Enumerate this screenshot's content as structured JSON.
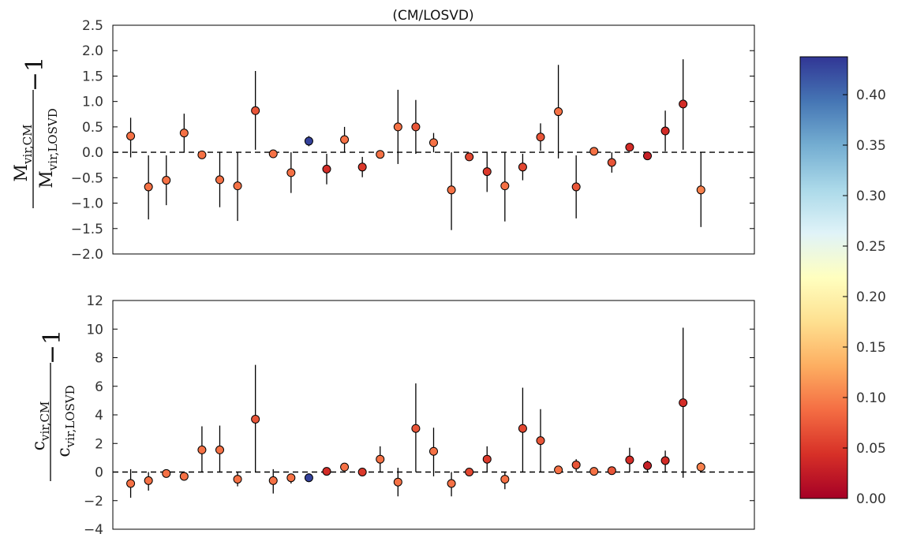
{
  "chart_data": {
    "title": "(CM/LOSVD)",
    "panels": [
      {
        "type": "scatter",
        "ylabel": {
          "numerator": "M",
          "numerator_sub": "vir,CM",
          "denominator": "M",
          "denominator_sub": "vir,LOSVD",
          "suffix": "−1"
        },
        "ylim": [
          -2.0,
          2.5
        ],
        "yticks": [
          -2.0,
          -1.5,
          -1.0,
          -0.5,
          0.0,
          0.5,
          1.0,
          1.5,
          2.0,
          2.5
        ],
        "ytick_labels": [
          "−2.0",
          "−1.5",
          "−1.0",
          "−0.5",
          "0.0",
          "0.5",
          "1.0",
          "1.5",
          "2.0",
          "2.5"
        ],
        "reference_line": 0,
        "points": [
          {
            "x": 1,
            "y": 0.32,
            "lo": -0.1,
            "hi": 0.68,
            "c": 0.09
          },
          {
            "x": 2,
            "y": -0.68,
            "lo": -1.32,
            "hi": -0.06,
            "c": 0.09
          },
          {
            "x": 3,
            "y": -0.55,
            "lo": -1.04,
            "hi": -0.06,
            "c": 0.09
          },
          {
            "x": 4,
            "y": 0.38,
            "lo": 0.0,
            "hi": 0.76,
            "c": 0.09
          },
          {
            "x": 5,
            "y": -0.05,
            "lo": -0.05,
            "hi": -0.05,
            "c": 0.09
          },
          {
            "x": 6,
            "y": -0.54,
            "lo": -1.08,
            "hi": 0.0,
            "c": 0.09
          },
          {
            "x": 7,
            "y": -0.66,
            "lo": -1.35,
            "hi": 0.0,
            "c": 0.09
          },
          {
            "x": 8,
            "y": 0.82,
            "lo": 0.05,
            "hi": 1.6,
            "c": 0.07
          },
          {
            "x": 9,
            "y": -0.03,
            "lo": -0.03,
            "hi": -0.03,
            "c": 0.09
          },
          {
            "x": 10,
            "y": -0.4,
            "lo": -0.8,
            "hi": 0.0,
            "c": 0.09
          },
          {
            "x": 11,
            "y": 0.22,
            "lo": 0.12,
            "hi": 0.32,
            "c": 0.43
          },
          {
            "x": 12,
            "y": -0.33,
            "lo": -0.63,
            "hi": -0.03,
            "c": 0.04
          },
          {
            "x": 13,
            "y": 0.25,
            "lo": 0.0,
            "hi": 0.5,
            "c": 0.09
          },
          {
            "x": 14,
            "y": -0.29,
            "lo": -0.49,
            "hi": -0.09,
            "c": 0.05
          },
          {
            "x": 15,
            "y": -0.04,
            "lo": -0.04,
            "hi": -0.04,
            "c": 0.09
          },
          {
            "x": 16,
            "y": 0.5,
            "lo": -0.23,
            "hi": 1.23,
            "c": 0.09
          },
          {
            "x": 17,
            "y": 0.5,
            "lo": -0.03,
            "hi": 1.03,
            "c": 0.07
          },
          {
            "x": 18,
            "y": 0.19,
            "lo": 0.0,
            "hi": 0.38,
            "c": 0.09
          },
          {
            "x": 19,
            "y": -0.74,
            "lo": -1.53,
            "hi": 0.0,
            "c": 0.09
          },
          {
            "x": 20,
            "y": -0.09,
            "lo": -0.09,
            "hi": -0.09,
            "c": 0.06
          },
          {
            "x": 21,
            "y": -0.38,
            "lo": -0.78,
            "hi": 0.0,
            "c": 0.05
          },
          {
            "x": 22,
            "y": -0.66,
            "lo": -1.36,
            "hi": 0.0,
            "c": 0.09
          },
          {
            "x": 23,
            "y": -0.29,
            "lo": -0.55,
            "hi": -0.03,
            "c": 0.06
          },
          {
            "x": 24,
            "y": 0.3,
            "lo": 0.03,
            "hi": 0.57,
            "c": 0.07
          },
          {
            "x": 25,
            "y": 0.8,
            "lo": -0.12,
            "hi": 1.72,
            "c": 0.09
          },
          {
            "x": 26,
            "y": -0.68,
            "lo": -1.3,
            "hi": -0.06,
            "c": 0.07
          },
          {
            "x": 27,
            "y": 0.02,
            "lo": 0.02,
            "hi": 0.02,
            "c": 0.09
          },
          {
            "x": 28,
            "y": -0.2,
            "lo": -0.4,
            "hi": 0.0,
            "c": 0.07
          },
          {
            "x": 29,
            "y": 0.1,
            "lo": 0.1,
            "hi": 0.1,
            "c": 0.04
          },
          {
            "x": 30,
            "y": -0.07,
            "lo": -0.07,
            "hi": -0.07,
            "c": 0.03
          },
          {
            "x": 31,
            "y": 0.42,
            "lo": 0.02,
            "hi": 0.82,
            "c": 0.04
          },
          {
            "x": 32,
            "y": 0.95,
            "lo": 0.05,
            "hi": 1.83,
            "c": 0.04
          },
          {
            "x": 33,
            "y": -0.74,
            "lo": -1.47,
            "hi": 0.0,
            "c": 0.1
          }
        ]
      },
      {
        "type": "scatter",
        "ylabel": {
          "numerator": "c",
          "numerator_sub": "vir,CM",
          "denominator": "c",
          "denominator_sub": "vir,LOSVD",
          "suffix": "−1"
        },
        "ylim": [
          -4,
          12
        ],
        "yticks": [
          -4,
          -2,
          0,
          2,
          4,
          6,
          8,
          10,
          12
        ],
        "ytick_labels": [
          "−4",
          "−2",
          "0",
          "2",
          "4",
          "6",
          "8",
          "10",
          "12"
        ],
        "reference_line": 0,
        "points": [
          {
            "x": 1,
            "y": -0.8,
            "lo": -1.8,
            "hi": 0.2,
            "c": 0.09
          },
          {
            "x": 2,
            "y": -0.6,
            "lo": -1.3,
            "hi": 0.0,
            "c": 0.09
          },
          {
            "x": 3,
            "y": -0.1,
            "lo": -0.1,
            "hi": -0.1,
            "c": 0.09
          },
          {
            "x": 4,
            "y": -0.3,
            "lo": -0.6,
            "hi": -0.3,
            "c": 0.09
          },
          {
            "x": 5,
            "y": 1.55,
            "lo": 0.0,
            "hi": 3.2,
            "c": 0.09
          },
          {
            "x": 6,
            "y": 1.55,
            "lo": 0.0,
            "hi": 3.25,
            "c": 0.09
          },
          {
            "x": 7,
            "y": -0.5,
            "lo": -1.0,
            "hi": 0.0,
            "c": 0.09
          },
          {
            "x": 8,
            "y": 3.7,
            "lo": 0.0,
            "hi": 7.5,
            "c": 0.07
          },
          {
            "x": 9,
            "y": -0.6,
            "lo": -1.5,
            "hi": 0.2,
            "c": 0.09
          },
          {
            "x": 10,
            "y": -0.4,
            "lo": -0.8,
            "hi": -0.4,
            "c": 0.09
          },
          {
            "x": 11,
            "y": -0.4,
            "lo": -0.7,
            "hi": -0.1,
            "c": 0.43
          },
          {
            "x": 12,
            "y": 0.05,
            "lo": 0.05,
            "hi": 0.05,
            "c": 0.04
          },
          {
            "x": 13,
            "y": 0.35,
            "lo": 0.35,
            "hi": 0.35,
            "c": 0.09
          },
          {
            "x": 14,
            "y": 0.0,
            "lo": 0.0,
            "hi": 0.0,
            "c": 0.05
          },
          {
            "x": 15,
            "y": 0.9,
            "lo": 0.0,
            "hi": 1.8,
            "c": 0.09
          },
          {
            "x": 16,
            "y": -0.7,
            "lo": -1.7,
            "hi": 0.3,
            "c": 0.09
          },
          {
            "x": 17,
            "y": 3.05,
            "lo": 0.0,
            "hi": 6.2,
            "c": 0.07
          },
          {
            "x": 18,
            "y": 1.45,
            "lo": -0.3,
            "hi": 3.1,
            "c": 0.09
          },
          {
            "x": 19,
            "y": -0.8,
            "lo": -1.7,
            "hi": 0.0,
            "c": 0.09
          },
          {
            "x": 20,
            "y": 0.0,
            "lo": 0.0,
            "hi": 0.0,
            "c": 0.06
          },
          {
            "x": 21,
            "y": 0.9,
            "lo": 0.0,
            "hi": 1.8,
            "c": 0.05
          },
          {
            "x": 22,
            "y": -0.5,
            "lo": -1.2,
            "hi": 0.0,
            "c": 0.09
          },
          {
            "x": 23,
            "y": 3.05,
            "lo": 0.0,
            "hi": 5.9,
            "c": 0.06
          },
          {
            "x": 24,
            "y": 2.2,
            "lo": 0.0,
            "hi": 4.4,
            "c": 0.07
          },
          {
            "x": 25,
            "y": 0.15,
            "lo": 0.15,
            "hi": 0.15,
            "c": 0.09
          },
          {
            "x": 26,
            "y": 0.5,
            "lo": 0.0,
            "hi": 0.9,
            "c": 0.07
          },
          {
            "x": 27,
            "y": 0.05,
            "lo": 0.05,
            "hi": 0.05,
            "c": 0.09
          },
          {
            "x": 28,
            "y": 0.1,
            "lo": 0.1,
            "hi": 0.1,
            "c": 0.07
          },
          {
            "x": 29,
            "y": 0.85,
            "lo": 0.0,
            "hi": 1.7,
            "c": 0.04
          },
          {
            "x": 30,
            "y": 0.45,
            "lo": 0.0,
            "hi": 0.8,
            "c": 0.03
          },
          {
            "x": 31,
            "y": 0.8,
            "lo": 0.0,
            "hi": 1.5,
            "c": 0.04
          },
          {
            "x": 32,
            "y": 4.85,
            "lo": -0.4,
            "hi": 10.1,
            "c": 0.04
          },
          {
            "x": 33,
            "y": 0.35,
            "lo": 0.0,
            "hi": 0.7,
            "c": 0.1
          }
        ]
      }
    ],
    "xlim": [
      0,
      36
    ],
    "colorbar": {
      "colormap": "RdYlBu",
      "range": [
        0.0,
        0.4375
      ],
      "ticks": [
        0.0,
        0.05,
        0.1,
        0.15,
        0.2,
        0.25,
        0.3,
        0.35,
        0.4
      ],
      "tick_labels": [
        "0.00",
        "0.05",
        "0.10",
        "0.15",
        "0.20",
        "0.25",
        "0.30",
        "0.35",
        "0.40"
      ],
      "stops": [
        "#a50026",
        "#d73027",
        "#f46d43",
        "#fdae61",
        "#fee090",
        "#ffffbf",
        "#e0f3f8",
        "#abd9e9",
        "#74add1",
        "#4575b4",
        "#313695"
      ]
    },
    "grid": false
  }
}
